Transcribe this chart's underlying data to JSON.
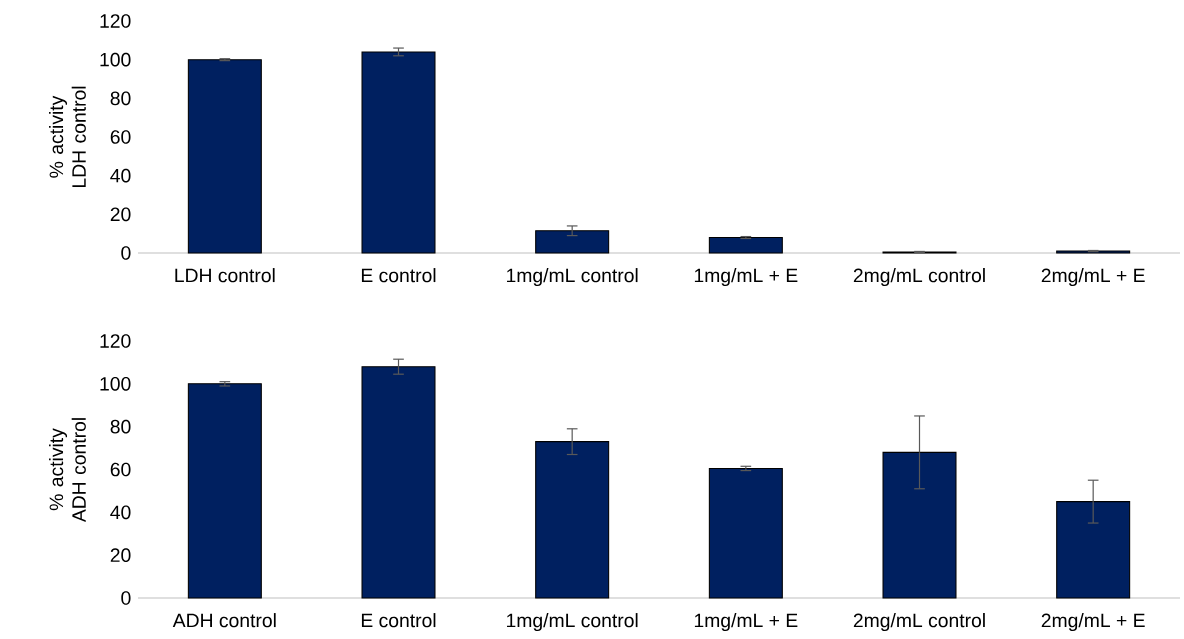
{
  "chart_data": [
    {
      "type": "bar",
      "ylabel": "% activity LDH control",
      "categories": [
        "LDH control",
        "E control",
        "1mg/mL control",
        "1mg/mL + E",
        "2mg/mL control",
        "2mg/mL + E"
      ],
      "values": [
        100,
        104,
        11.5,
        8,
        0.5,
        1
      ],
      "errors": [
        0.5,
        2,
        2.5,
        0.5,
        0.3,
        0.3
      ],
      "color": "#002060",
      "ylim": [
        0,
        120
      ],
      "yticks": [
        0,
        20,
        40,
        60,
        80,
        100,
        120
      ]
    },
    {
      "type": "bar",
      "ylabel": "% activity ADH control",
      "categories": [
        "ADH control",
        "E control",
        "1mg/mL control",
        "1mg/mL + E",
        "2mg/mL control",
        "2mg/mL + E"
      ],
      "values": [
        100,
        108,
        73,
        60.5,
        68,
        45
      ],
      "errors": [
        1,
        3.5,
        6,
        1,
        17,
        10
      ],
      "color": "#002060",
      "ylim": [
        0,
        120
      ],
      "yticks": [
        0,
        20,
        40,
        60,
        80,
        100,
        120
      ]
    }
  ]
}
